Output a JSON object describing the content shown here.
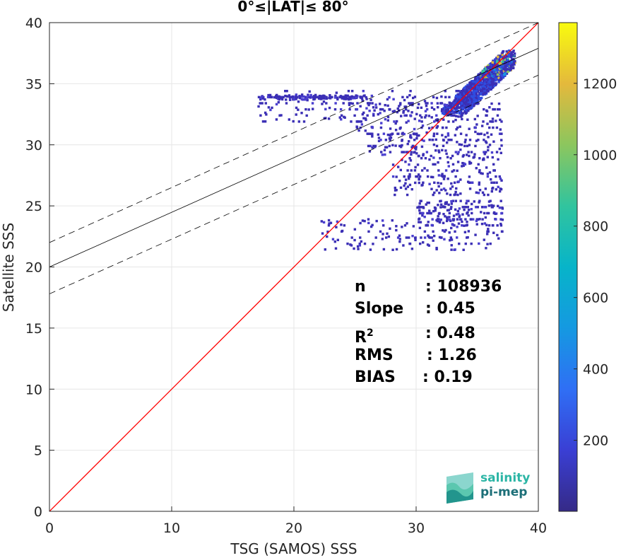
{
  "chart_data": {
    "type": "heatmap",
    "title": "0°≤|LAT|≤ 80°",
    "xlabel": "TSG (SAMOS) SSS",
    "ylabel": "Satellite SSS",
    "xlim": [
      0,
      40
    ],
    "ylim": [
      0,
      40
    ],
    "xticks": [
      "0",
      "10",
      "20",
      "30",
      "40"
    ],
    "yticks": [
      "0",
      "5",
      "10",
      "15",
      "20",
      "25",
      "30",
      "35",
      "40"
    ],
    "grid": true,
    "colorbar": {
      "range": [
        1,
        1370
      ],
      "ticks": [
        "200",
        "400",
        "600",
        "800",
        "1000",
        "1200"
      ],
      "tick_values": [
        200,
        400,
        600,
        800,
        1000,
        1200
      ],
      "colormap": "parula"
    },
    "lines": {
      "identity": {
        "x": [
          0,
          40
        ],
        "y": [
          0,
          40
        ],
        "color": "#ff0000"
      },
      "fit": {
        "x": [
          0,
          40
        ],
        "y": [
          20.0,
          37.9
        ],
        "color": "#000000"
      },
      "upper_bound": {
        "x": [
          0,
          40
        ],
        "y": [
          22.0,
          40.0
        ],
        "color": "#000000",
        "dash": true
      },
      "lower_bound": {
        "x": [
          0,
          40
        ],
        "y": [
          17.8,
          35.7
        ],
        "color": "#000000",
        "dash": true
      }
    },
    "density_regions": [
      {
        "x": [
          32,
          38
        ],
        "y": [
          32.5,
          37.8
        ],
        "level": "high"
      },
      {
        "x": [
          33,
          38
        ],
        "y": [
          33,
          37.5
        ],
        "level": "high"
      },
      {
        "x": [
          17,
          34
        ],
        "y": [
          32,
          34.5
        ],
        "level": "low"
      },
      {
        "x": [
          17,
          26
        ],
        "y": [
          33.8,
          34.2
        ],
        "level": "low"
      },
      {
        "x": [
          25,
          37
        ],
        "y": [
          31,
          33.5
        ],
        "level": "low"
      },
      {
        "x": [
          26,
          37
        ],
        "y": [
          29,
          31
        ],
        "level": "low"
      },
      {
        "x": [
          28,
          37
        ],
        "y": [
          26,
          29
        ],
        "level": "low"
      },
      {
        "x": [
          22,
          37
        ],
        "y": [
          21.5,
          24
        ],
        "level": "low"
      },
      {
        "x": [
          30,
          37
        ],
        "y": [
          23.5,
          25.5
        ],
        "level": "low"
      }
    ],
    "stats": [
      {
        "label": "n",
        "value": "108936"
      },
      {
        "label": "Slope",
        "value": "0.45"
      },
      {
        "label": "R",
        "sup": "2",
        "value": "0.48"
      },
      {
        "label": "RMS",
        "value": "1.26"
      },
      {
        "label": "BIAS",
        "value": "0.19"
      }
    ]
  },
  "logo": {
    "line1": "salinity",
    "line2": "pi-mep"
  }
}
